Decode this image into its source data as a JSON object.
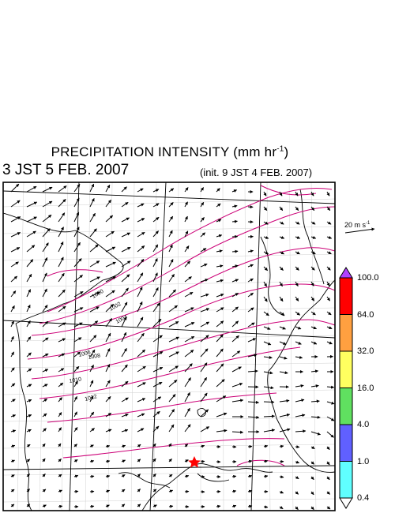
{
  "title": {
    "main": "PRECIPITATION INTENSITY (mm hr",
    "exponent": "-1",
    "close": ")"
  },
  "valid_time": "3 JST 5 FEB. 2007",
  "init_time": "(init. 9 JST 4 FEB. 2007)",
  "wind_reference": {
    "label": "20 m s",
    "exponent": "-1"
  },
  "colorbar": {
    "labels": [
      "100.0",
      "64.0",
      "32.0",
      "16.0",
      "4.0",
      "1.0",
      "0.4"
    ],
    "colors": [
      "#ff0000",
      "#ffa040",
      "#ffff60",
      "#60e060",
      "#6060ff",
      "#60ffff"
    ],
    "over_color": "#b040ff",
    "under_color": "#ffffff"
  },
  "isobars": {
    "color": "#cc0077",
    "labels": [
      "1000",
      "1002",
      "1004",
      "1006",
      "1008",
      "1010",
      "1012"
    ]
  },
  "marker": {
    "symbol": "star",
    "color": "#ff0000"
  }
}
